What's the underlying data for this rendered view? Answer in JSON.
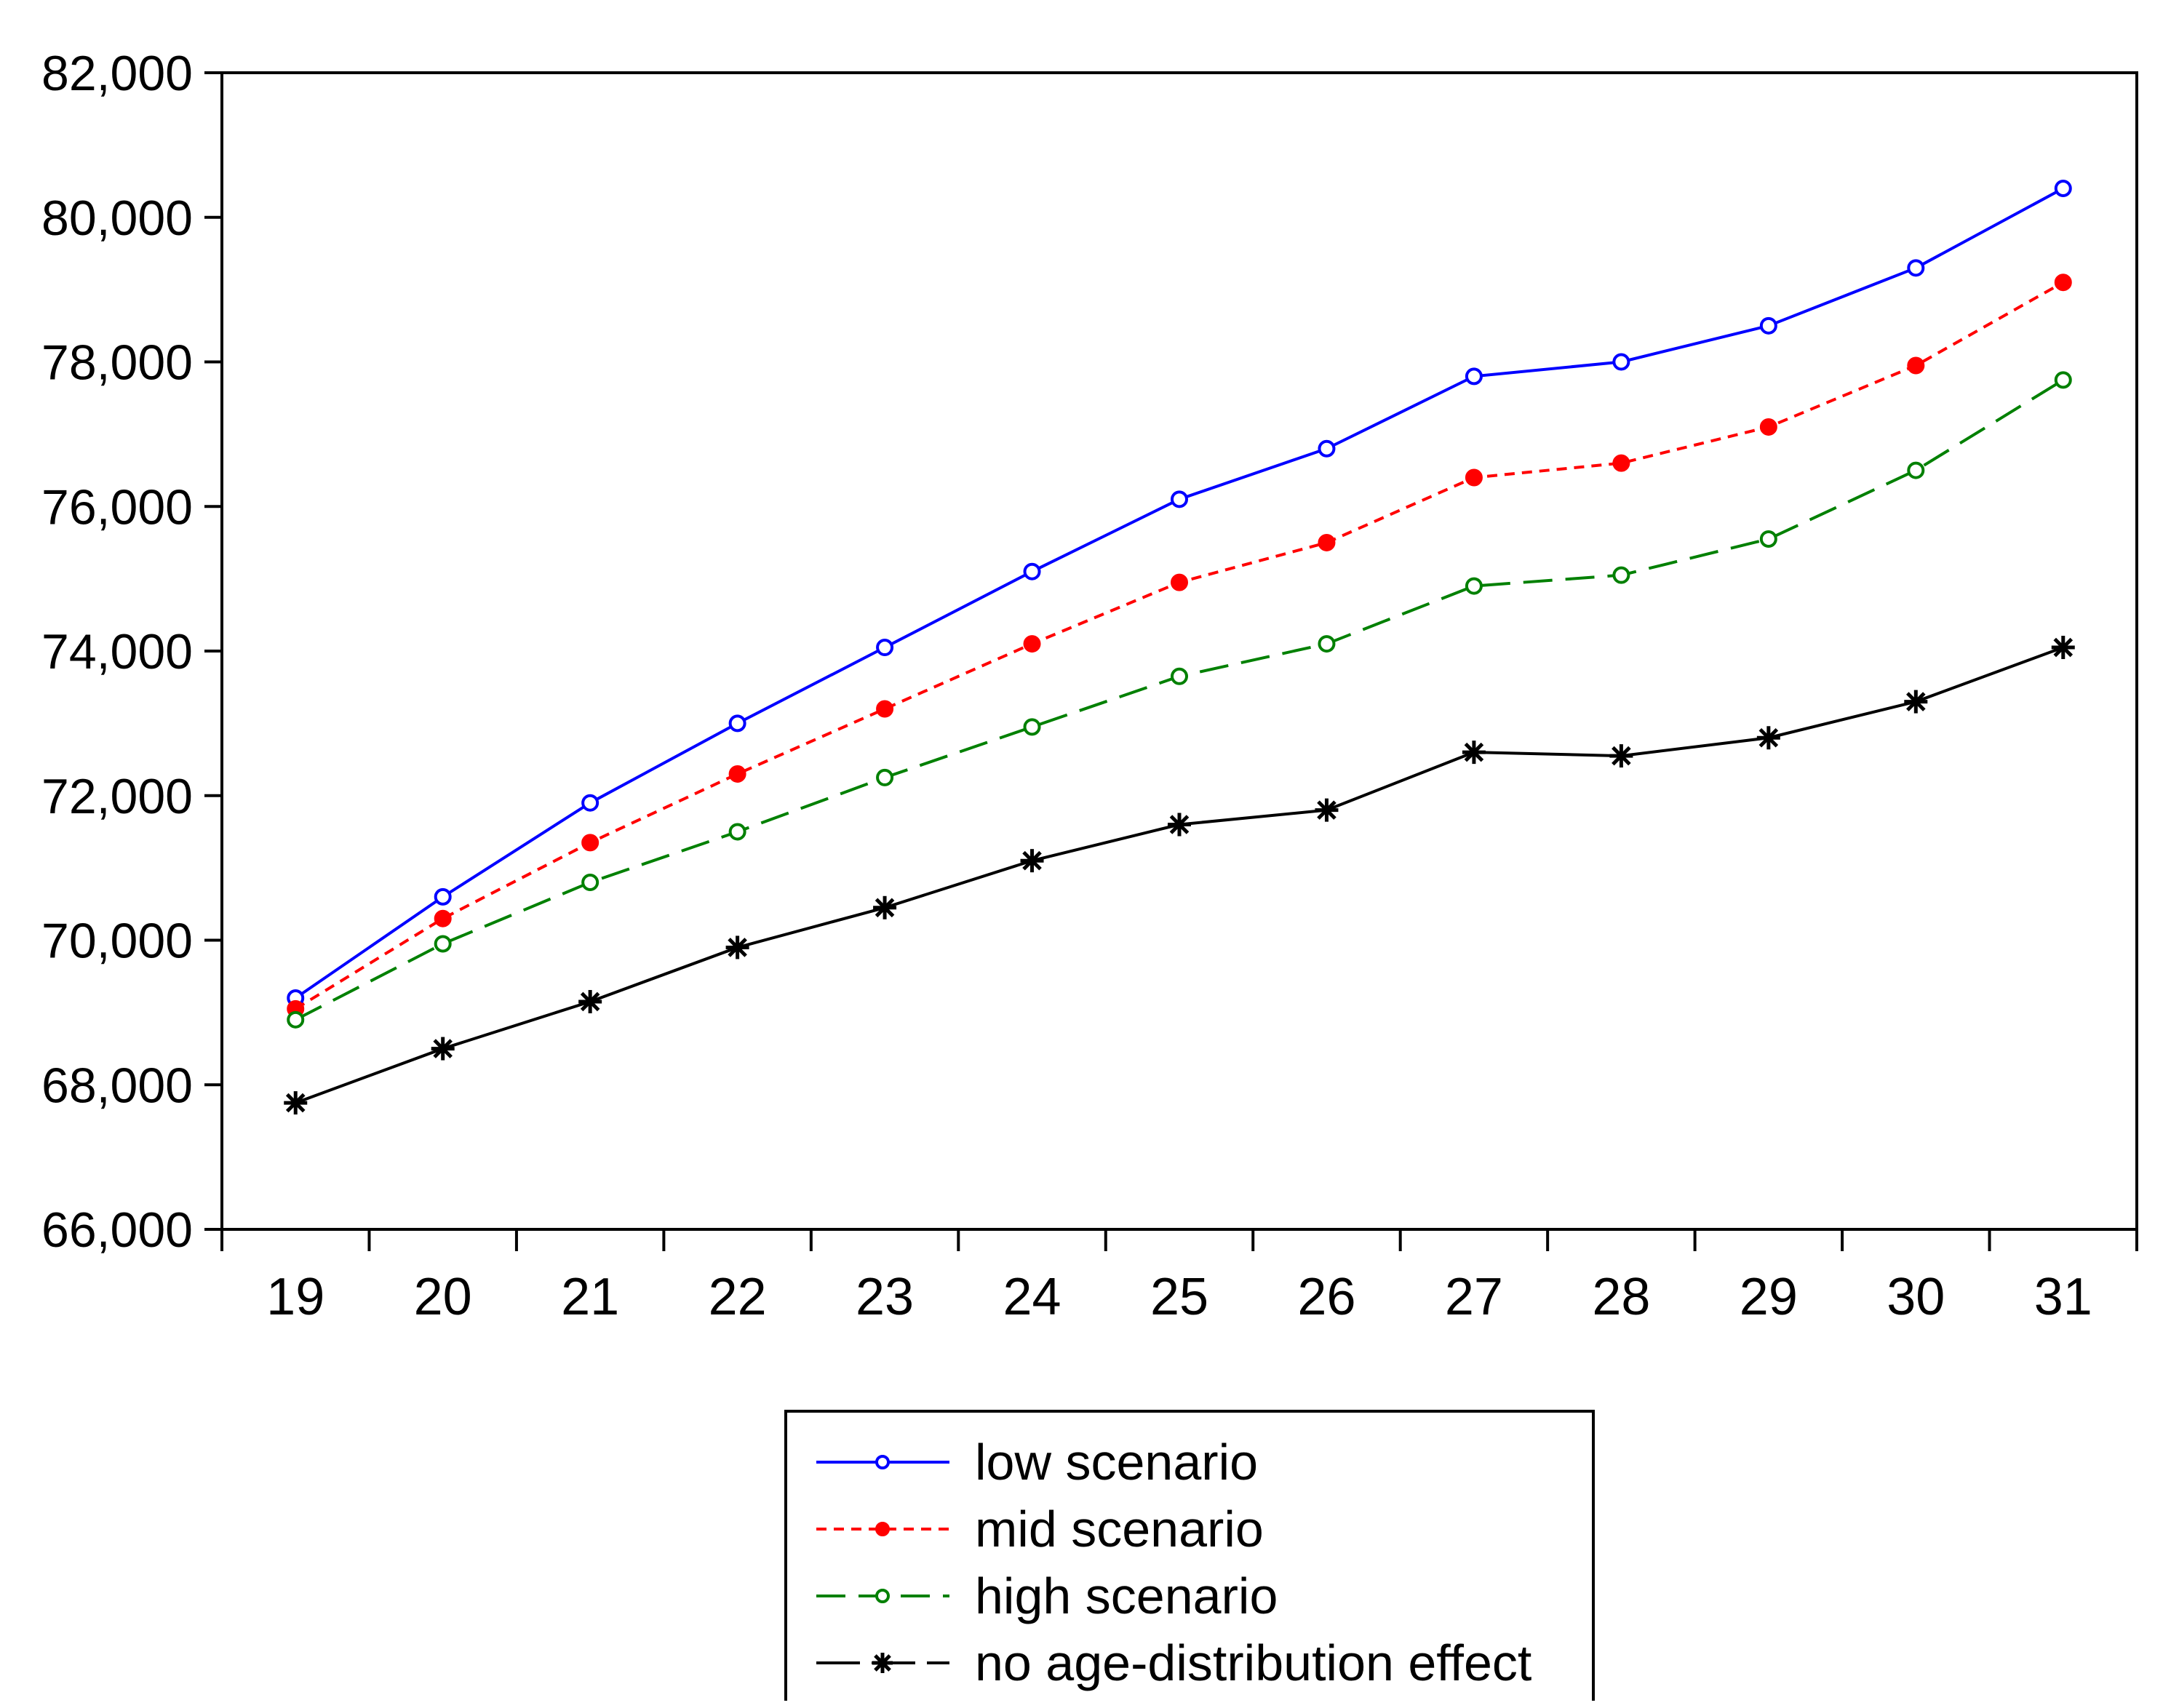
{
  "chart_data": {
    "type": "line",
    "title": "",
    "xlabel": "",
    "ylabel": "",
    "categories": [
      "19",
      "20",
      "21",
      "22",
      "23",
      "24",
      "25",
      "26",
      "27",
      "28",
      "29",
      "30",
      "31"
    ],
    "ylim": [
      66000,
      82000
    ],
    "yticks": [
      66000,
      68000,
      70000,
      72000,
      74000,
      76000,
      78000,
      80000,
      82000
    ],
    "ytick_labels": [
      "66,000",
      "68,000",
      "70,000",
      "72,000",
      "74,000",
      "76,000",
      "78,000",
      "80,000",
      "82,000"
    ],
    "grid": false,
    "legend_position": "bottom-center",
    "series": [
      {
        "name": "low scenario",
        "color": "#0000ff",
        "line_style": "solid",
        "marker": "open-circle",
        "values": [
          69200,
          70600,
          71900,
          73000,
          74050,
          75100,
          76100,
          76800,
          77800,
          78000,
          78500,
          79300,
          80400
        ]
      },
      {
        "name": "mid scenario",
        "color": "#ff0000",
        "line_style": "dotted",
        "marker": "filled-circle",
        "values": [
          69050,
          70300,
          71350,
          72300,
          73200,
          74100,
          74950,
          75500,
          76400,
          76600,
          77100,
          77950,
          79100
        ]
      },
      {
        "name": "high scenario",
        "color": "#008000",
        "line_style": "dashed",
        "marker": "open-circle",
        "values": [
          68900,
          69950,
          70800,
          71500,
          72250,
          72950,
          73650,
          74100,
          74900,
          75050,
          75550,
          76500,
          77750
        ]
      },
      {
        "name": "no age-distribution effect",
        "color": "#000000",
        "line_style": "long-dash",
        "marker": "star",
        "values": [
          67750,
          68500,
          69150,
          69900,
          70450,
          71100,
          71600,
          71800,
          72600,
          72550,
          72800,
          73300,
          74050
        ]
      }
    ]
  }
}
